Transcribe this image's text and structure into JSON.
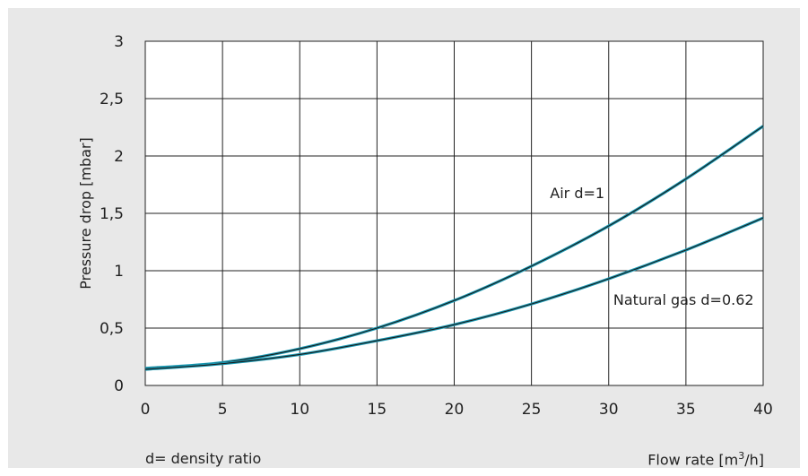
{
  "chart_data": {
    "type": "line",
    "ylabel": "Pressure drop [mbar]",
    "xlim": [
      0,
      40
    ],
    "ylim": [
      0,
      3
    ],
    "x_ticks": [
      0,
      5,
      10,
      15,
      20,
      25,
      30,
      35,
      40
    ],
    "x_tick_labels": [
      "0",
      "5",
      "10",
      "15",
      "20",
      "25",
      "30",
      "35",
      "40"
    ],
    "y_ticks": [
      0,
      0.5,
      1,
      1.5,
      2,
      2.5,
      3
    ],
    "y_tick_labels": [
      "0",
      "0,5",
      "1",
      "1,5",
      "2",
      "2,5",
      "3"
    ],
    "grid": true,
    "series": [
      {
        "name": "Air d=1",
        "color": "#1a9bb5",
        "x": [
          0,
          5,
          10,
          15,
          20,
          25,
          30,
          35,
          40
        ],
        "y": [
          0.15,
          0.2,
          0.32,
          0.5,
          0.74,
          1.04,
          1.39,
          1.8,
          2.26
        ]
      },
      {
        "name": "Natural gas d=0.62",
        "color": "#1a9bb5",
        "x": [
          0,
          5,
          10,
          15,
          20,
          25,
          30,
          35,
          40
        ],
        "y": [
          0.14,
          0.19,
          0.27,
          0.39,
          0.53,
          0.71,
          0.93,
          1.18,
          1.46
        ]
      }
    ]
  },
  "footer": {
    "note": "d= density ratio",
    "xlabel_main": "Flow rate [m",
    "xlabel_sup": "3",
    "xlabel_tail": "/h]"
  }
}
